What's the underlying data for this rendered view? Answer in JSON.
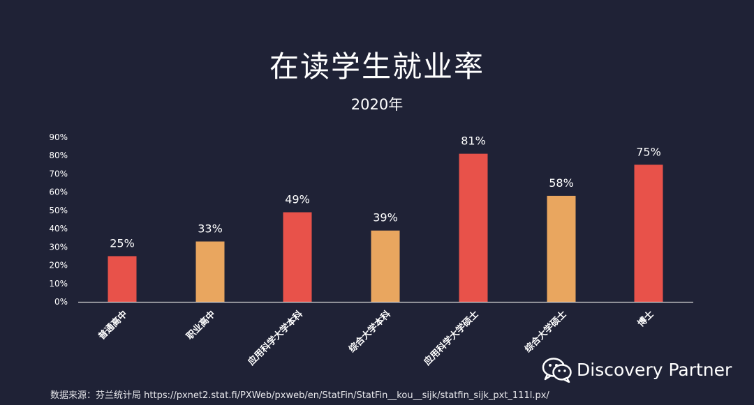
{
  "chart_data": {
    "type": "bar",
    "title": "在读学生就业率",
    "subtitle": "2020年",
    "categories": [
      "普通高中",
      "职业高中",
      "应用科学大学本科",
      "综合大学本科",
      "应用科学大学硕士",
      "综合大学硕士",
      "博士"
    ],
    "values": [
      25,
      33,
      49,
      39,
      81,
      58,
      75
    ],
    "value_labels": [
      "25%",
      "33%",
      "49%",
      "39%",
      "81%",
      "58%",
      "75%"
    ],
    "bar_colors": [
      "#e8524a",
      "#e9a65f",
      "#e8524a",
      "#e9a65f",
      "#e8524a",
      "#e9a65f",
      "#e8524a"
    ],
    "ylim": [
      0,
      90
    ],
    "yticks": [
      0,
      10,
      20,
      30,
      40,
      50,
      60,
      70,
      80,
      90
    ],
    "ytick_labels": [
      "0%",
      "10%",
      "20%",
      "30%",
      "40%",
      "50%",
      "60%",
      "70%",
      "80%",
      "90%"
    ],
    "xlabel": "",
    "ylabel": "",
    "grid": false,
    "legend": "none"
  },
  "footer": {
    "source": "数据来源：芬兰统计局 https://pxnet2.stat.fi/PXWeb/pxweb/en/StatFin/StatFin__kou__sijk/statfin_sijk_pxt_111l.px/"
  },
  "watermark": {
    "brand": "Discovery Partner",
    "icon": "wechat-icon"
  },
  "colors": {
    "background": "#1f2236",
    "accent_red": "#e8524a",
    "accent_orange": "#e9a65f"
  }
}
